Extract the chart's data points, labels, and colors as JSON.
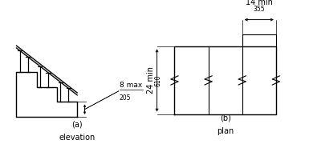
{
  "bg_color": "#ffffff",
  "line_color": "#000000",
  "gray_color": "#888888",
  "fig_a_label": "(a)",
  "fig_a_sublabel": "elevation",
  "fig_b_label": "(b)",
  "fig_b_sublabel": "plan",
  "dim_8max": "8 max",
  "dim_205": "205",
  "dim_14min": "14 min",
  "dim_355": "355",
  "dim_24min": "24 min",
  "dim_610": "610"
}
